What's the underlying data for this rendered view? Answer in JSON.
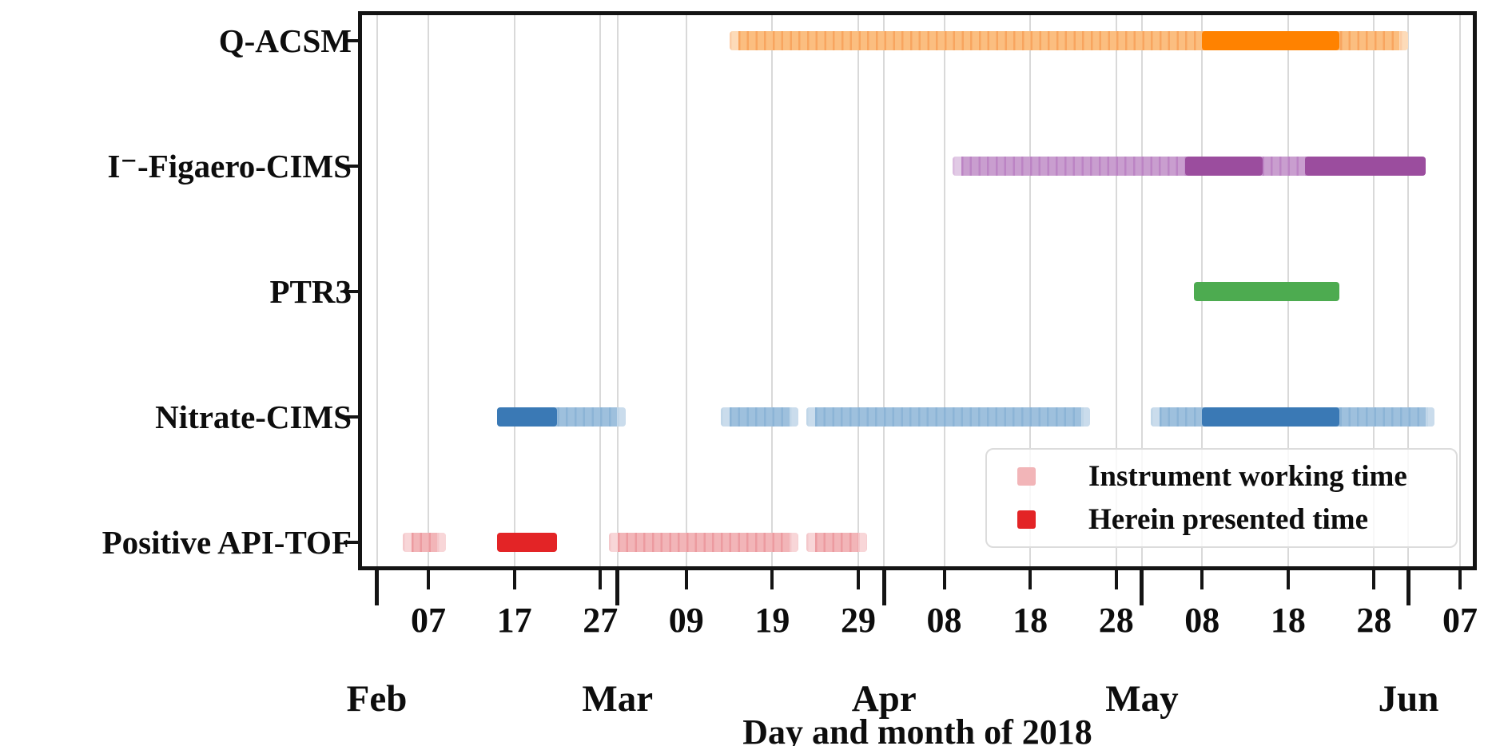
{
  "figure": {
    "xlabel": "Day and month of 2018"
  },
  "legend": {
    "items": [
      {
        "label": "Instrument working time",
        "color": "#F2B5B8"
      },
      {
        "label": "Herein presented time",
        "color": "#E32426"
      }
    ]
  },
  "colors": {
    "grid": "#D9D9D9",
    "axis": "#141414",
    "legend_border": "#DCDCDC"
  },
  "chart_data": {
    "type": "gantt",
    "title": "",
    "xlabel": "Day and month of 2018",
    "x_range": [
      "2018 Jan 30",
      "2018 Jun 09"
    ],
    "grid": true,
    "legend_position": "lower right",
    "segment_dates_note": "end date exclusive; bars are stacks of 1-day rectangles",
    "day_ticks": [
      {
        "label": "07",
        "date": "Feb 7"
      },
      {
        "label": "17",
        "date": "Feb 17"
      },
      {
        "label": "27",
        "date": "Feb 27"
      },
      {
        "label": "09",
        "date": "Mar 9"
      },
      {
        "label": "19",
        "date": "Mar 19"
      },
      {
        "label": "29",
        "date": "Mar 29"
      },
      {
        "label": "08",
        "date": "Apr 8"
      },
      {
        "label": "18",
        "date": "Apr 18"
      },
      {
        "label": "28",
        "date": "Apr 28"
      },
      {
        "label": "08",
        "date": "May 8"
      },
      {
        "label": "18",
        "date": "May 18"
      },
      {
        "label": "28",
        "date": "May 28"
      },
      {
        "label": "07",
        "date": "Jun 7"
      }
    ],
    "month_ticks": [
      {
        "label": "Feb",
        "date": "Feb 1"
      },
      {
        "label": "Mar",
        "date": "Mar 1"
      },
      {
        "label": "Apr",
        "date": "Apr 1"
      },
      {
        "label": "May",
        "date": "May 1"
      },
      {
        "label": "Jun",
        "date": "Jun 1"
      }
    ],
    "rows": [
      {
        "label": "Q-ACSM",
        "light": "#FBBE80",
        "seam": "#F8A55F",
        "dark": "#FF8200",
        "working": [
          [
            "Mar 14",
            "Jun 1"
          ]
        ],
        "presented": [
          [
            "May 8",
            "May 24"
          ]
        ]
      },
      {
        "label": "I⁻-Figaero-CIMS",
        "light": "#C99ECF",
        "seam": "#BC84C4",
        "dark": "#9B4D9E",
        "working": [
          [
            "Apr 9",
            "Jun 3"
          ]
        ],
        "presented": [
          [
            "May 6",
            "May 15"
          ],
          [
            "May 20",
            "Jun 3"
          ]
        ]
      },
      {
        "label": "PTR3",
        "light": "#A8D5A9",
        "seam": "#97CB98",
        "dark": "#4DAB50",
        "working": [],
        "presented": [
          [
            "May 7",
            "May 24"
          ]
        ]
      },
      {
        "label": "Nitrate-CIMS",
        "light": "#9EC0DD",
        "seam": "#8CB4D6",
        "dark": "#3A79B5",
        "working": [
          [
            "Feb 15",
            "Mar 2"
          ],
          [
            "Mar 13",
            "Mar 22"
          ],
          [
            "Mar 23",
            "Apr 25"
          ],
          [
            "May 2",
            "Jun 4"
          ]
        ],
        "presented": [
          [
            "Feb 15",
            "Feb 22"
          ],
          [
            "May 8",
            "May 24"
          ]
        ]
      },
      {
        "label": "Positive API-TOF",
        "light": "#F2B5B8",
        "seam": "#EC9BA0",
        "dark": "#E32426",
        "working": [
          [
            "Feb 4",
            "Feb 9"
          ],
          [
            "Feb 15",
            "Feb 22"
          ],
          [
            "Feb 28",
            "Mar 22"
          ],
          [
            "Mar 23",
            "Mar 30"
          ]
        ],
        "presented": [
          [
            "Feb 15",
            "Feb 22"
          ]
        ]
      }
    ]
  }
}
